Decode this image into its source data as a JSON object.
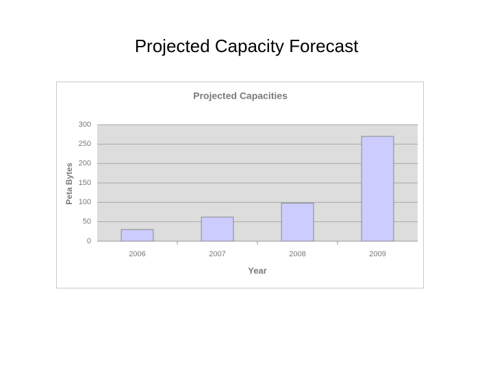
{
  "slide_title": "Projected Capacity Forecast",
  "chart_data": {
    "type": "bar",
    "title": "Projected Capacities",
    "x_label": "Year",
    "y_label": "Peta Bytes",
    "categories": [
      "2006",
      "2007",
      "2008",
      "2009"
    ],
    "values": [
      30,
      62,
      98,
      270
    ],
    "color": "#ccccff",
    "ylim": [
      0,
      300
    ],
    "yticks": [
      0,
      50,
      100,
      150,
      200,
      250,
      300
    ],
    "grid": true
  }
}
